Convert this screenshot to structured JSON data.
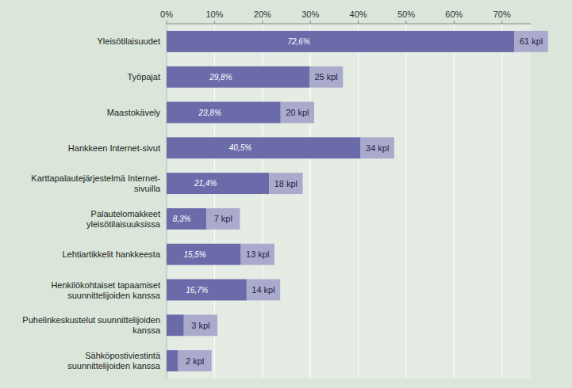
{
  "chart_data": {
    "type": "bar",
    "orientation": "horizontal",
    "categories": [
      "Yleisötilaisuudet",
      "Työpajat",
      "Maastokävely",
      "Hankkeen Internet-sivut",
      "Karttapalautejärjestelmä Internet-\nsivuilla",
      "Palautelomakkeet\nyleisötilaisuuksissa",
      "Lehtiartikkelit hankkeesta",
      "Henkilökohtaiset tapaamiset\nsuunnittelijoiden kanssa",
      "Puhelinkeskustelut suunnittelijoiden\nkanssa",
      "Sähköpostiviestintä\nsuunnittelijoiden kanssa"
    ],
    "values": [
      72.6,
      29.8,
      23.8,
      40.5,
      21.4,
      8.3,
      15.5,
      16.7,
      3.6,
      2.4
    ],
    "value_labels": [
      "72,6%",
      "29,8%",
      "23,8%",
      "40,5%",
      "21,4%",
      "8,3%",
      "15,5%",
      "16,7%",
      null,
      null
    ],
    "data_labels": true,
    "counts": [
      61,
      25,
      20,
      34,
      18,
      7,
      13,
      14,
      3,
      2
    ],
    "count_labels": [
      "61 kpl",
      "25 kpl",
      "20 kpl",
      "34 kpl",
      "18 kpl",
      "7 kpl",
      "13 kpl",
      "14 kpl",
      "3 kpl",
      "2 kpl"
    ],
    "color": "#6b6baa",
    "count_color": "#aaaacc",
    "xlim": [
      0,
      76
    ],
    "xticks": [
      {
        "value": 0,
        "label": "0%"
      },
      {
        "value": 10,
        "label": "10%"
      },
      {
        "value": 20,
        "label": "20%"
      },
      {
        "value": 30,
        "label": "30%"
      },
      {
        "value": 40,
        "label": "40%"
      },
      {
        "value": 50,
        "label": "50%"
      },
      {
        "value": 60,
        "label": "60%"
      },
      {
        "value": 70,
        "label": "70%"
      }
    ],
    "grid": true
  }
}
